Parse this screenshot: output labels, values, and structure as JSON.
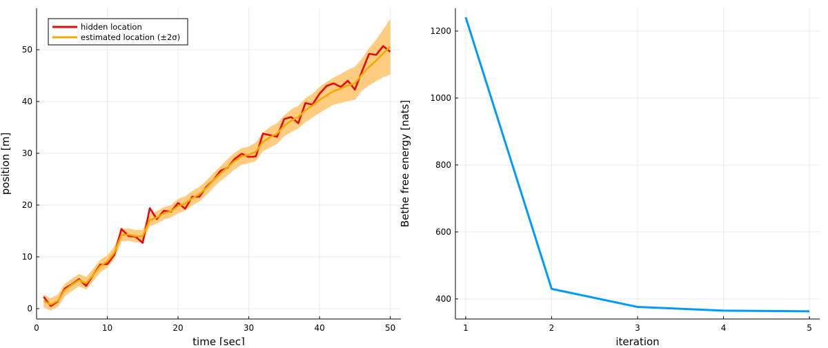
{
  "chart_data": [
    {
      "type": "line",
      "title": "",
      "xlabel": "time [sec]",
      "ylabel": "position [m]",
      "xlim": [
        0,
        51.5
      ],
      "ylim": [
        -2,
        58
      ],
      "xticks": [
        0,
        10,
        20,
        30,
        40,
        50
      ],
      "yticks": [
        0,
        10,
        20,
        30,
        40,
        50
      ],
      "grid": true,
      "legend_position": "top-left",
      "x": [
        1,
        2,
        3,
        4,
        5,
        6,
        7,
        8,
        9,
        10,
        11,
        12,
        13,
        14,
        15,
        16,
        17,
        18,
        19,
        20,
        21,
        22,
        23,
        24,
        25,
        26,
        27,
        28,
        29,
        30,
        31,
        32,
        33,
        34,
        35,
        36,
        37,
        38,
        39,
        40,
        41,
        42,
        43,
        44,
        45,
        46,
        47,
        48,
        49,
        50
      ],
      "series": [
        {
          "name": "hidden location",
          "color": "#e8070b",
          "values": [
            2.3,
            0.5,
            1.4,
            3.9,
            4.7,
            5.7,
            4.4,
            6.5,
            8.5,
            8.6,
            10.4,
            15.4,
            14.0,
            13.9,
            12.7,
            19.4,
            17.3,
            18.9,
            18.7,
            20.4,
            19.3,
            21.6,
            21.6,
            23.5,
            24.8,
            26.6,
            27.2,
            28.9,
            29.9,
            29.3,
            29.4,
            33.8,
            33.5,
            33.2,
            36.6,
            37.0,
            35.8,
            39.7,
            39.4,
            41.5,
            43.0,
            43.5,
            42.8,
            44.0,
            42.3,
            45.8,
            49.2,
            49.0,
            50.7,
            49.6
          ]
        },
        {
          "name": "estimated location (±2σ)",
          "color": "#f5a900",
          "band_color": "#ffc772",
          "values": [
            1.5,
            0.8,
            1.5,
            3.6,
            4.6,
            5.5,
            4.9,
            6.5,
            8.2,
            9.1,
            10.8,
            14.2,
            14.3,
            14.0,
            14.0,
            17.1,
            17.6,
            18.4,
            18.8,
            19.8,
            20.3,
            21.3,
            22.1,
            23.3,
            24.8,
            26.1,
            27.3,
            28.5,
            29.4,
            29.7,
            30.3,
            32.2,
            33.1,
            33.8,
            35.3,
            36.3,
            37.0,
            38.3,
            39.2,
            40.3,
            41.2,
            42.0,
            42.5,
            43.1,
            43.5,
            45.2,
            46.7,
            47.9,
            49.3,
            50.6
          ],
          "lower": [
            0.3,
            -0.4,
            0.3,
            2.4,
            3.4,
            4.3,
            3.7,
            5.3,
            7.0,
            7.9,
            9.6,
            13.0,
            13.1,
            12.8,
            12.8,
            15.9,
            16.4,
            17.2,
            17.6,
            18.4,
            18.9,
            19.9,
            20.7,
            21.9,
            23.4,
            24.7,
            25.7,
            26.9,
            27.8,
            28.1,
            28.5,
            30.4,
            31.1,
            31.8,
            33.3,
            34.1,
            34.8,
            36.0,
            36.9,
            37.8,
            38.6,
            39.4,
            39.7,
            40.1,
            40.3,
            42.1,
            43.1,
            43.9,
            44.7,
            45.2
          ],
          "upper": [
            2.7,
            2.0,
            2.7,
            4.8,
            5.8,
            6.7,
            6.1,
            7.7,
            9.4,
            10.3,
            12.0,
            15.4,
            15.5,
            15.2,
            15.2,
            18.3,
            18.8,
            19.6,
            20.0,
            21.2,
            21.7,
            22.7,
            23.5,
            24.7,
            26.2,
            27.5,
            28.9,
            30.1,
            31.0,
            31.3,
            32.1,
            34.0,
            35.1,
            35.8,
            37.3,
            38.5,
            39.2,
            40.6,
            41.5,
            42.8,
            43.8,
            44.6,
            45.3,
            46.1,
            46.7,
            48.3,
            50.3,
            51.9,
            53.9,
            56.0
          ]
        }
      ]
    },
    {
      "type": "line",
      "title": "",
      "xlabel": "iteration",
      "ylabel": "Bethe free energy [nats]",
      "xlim": [
        0.88,
        5.12
      ],
      "ylim": [
        340,
        1268
      ],
      "xticks": [
        1,
        2,
        3,
        4,
        5
      ],
      "yticks": [
        400,
        600,
        800,
        1000,
        1200
      ],
      "grid": true,
      "x": [
        1,
        2,
        3,
        4,
        5
      ],
      "series": [
        {
          "color": "#009af9",
          "values": [
            1241,
            430,
            376,
            365,
            363
          ]
        }
      ]
    }
  ]
}
